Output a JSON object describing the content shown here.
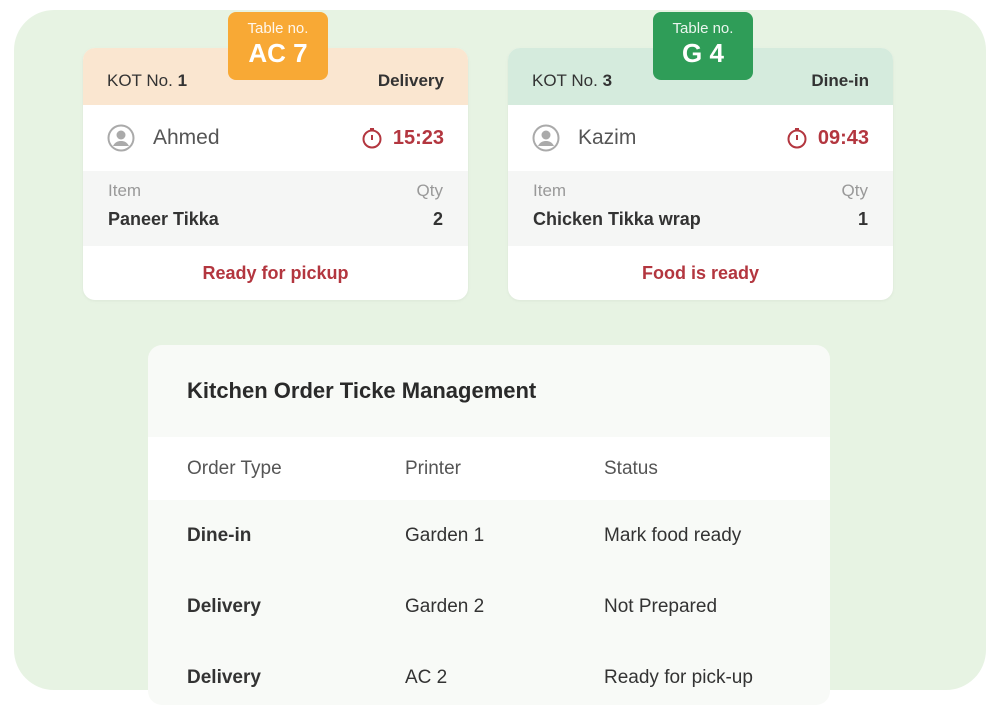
{
  "kot_cards": [
    {
      "kot_label": "KOT No.",
      "kot_number": "1",
      "order_type": "Delivery",
      "table_label": "Table no.",
      "table_number": "AC 7",
      "customer": "Ahmed",
      "time": "15:23",
      "item_header": "Item",
      "qty_header": "Qty",
      "item": "Paneer Tikka",
      "qty": "2",
      "status": "Ready for pickup",
      "header_color": "#fae6d0",
      "badge_color": "#f8a935"
    },
    {
      "kot_label": "KOT No.",
      "kot_number": "3",
      "order_type": "Dine-in",
      "table_label": "Table no.",
      "table_number": "G 4",
      "customer": "Kazim",
      "time": "09:43",
      "item_header": "Item",
      "qty_header": "Qty",
      "item": "Chicken Tikka wrap",
      "qty": "1",
      "status": "Food is ready",
      "header_color": "#d5ebdd",
      "badge_color": "#2f9d58"
    }
  ],
  "management": {
    "title": "Kitchen Order Ticke Management",
    "columns": [
      "Order Type",
      "Printer",
      "Status"
    ],
    "rows": [
      [
        "Dine-in",
        "Garden 1",
        "Mark food ready"
      ],
      [
        "Delivery",
        "Garden 2",
        "Not Prepared"
      ],
      [
        "Delivery",
        "AC 2",
        "Ready for pick-up"
      ]
    ]
  },
  "colors": {
    "accent_red": "#b3363f",
    "background": "#e7f3e3"
  }
}
